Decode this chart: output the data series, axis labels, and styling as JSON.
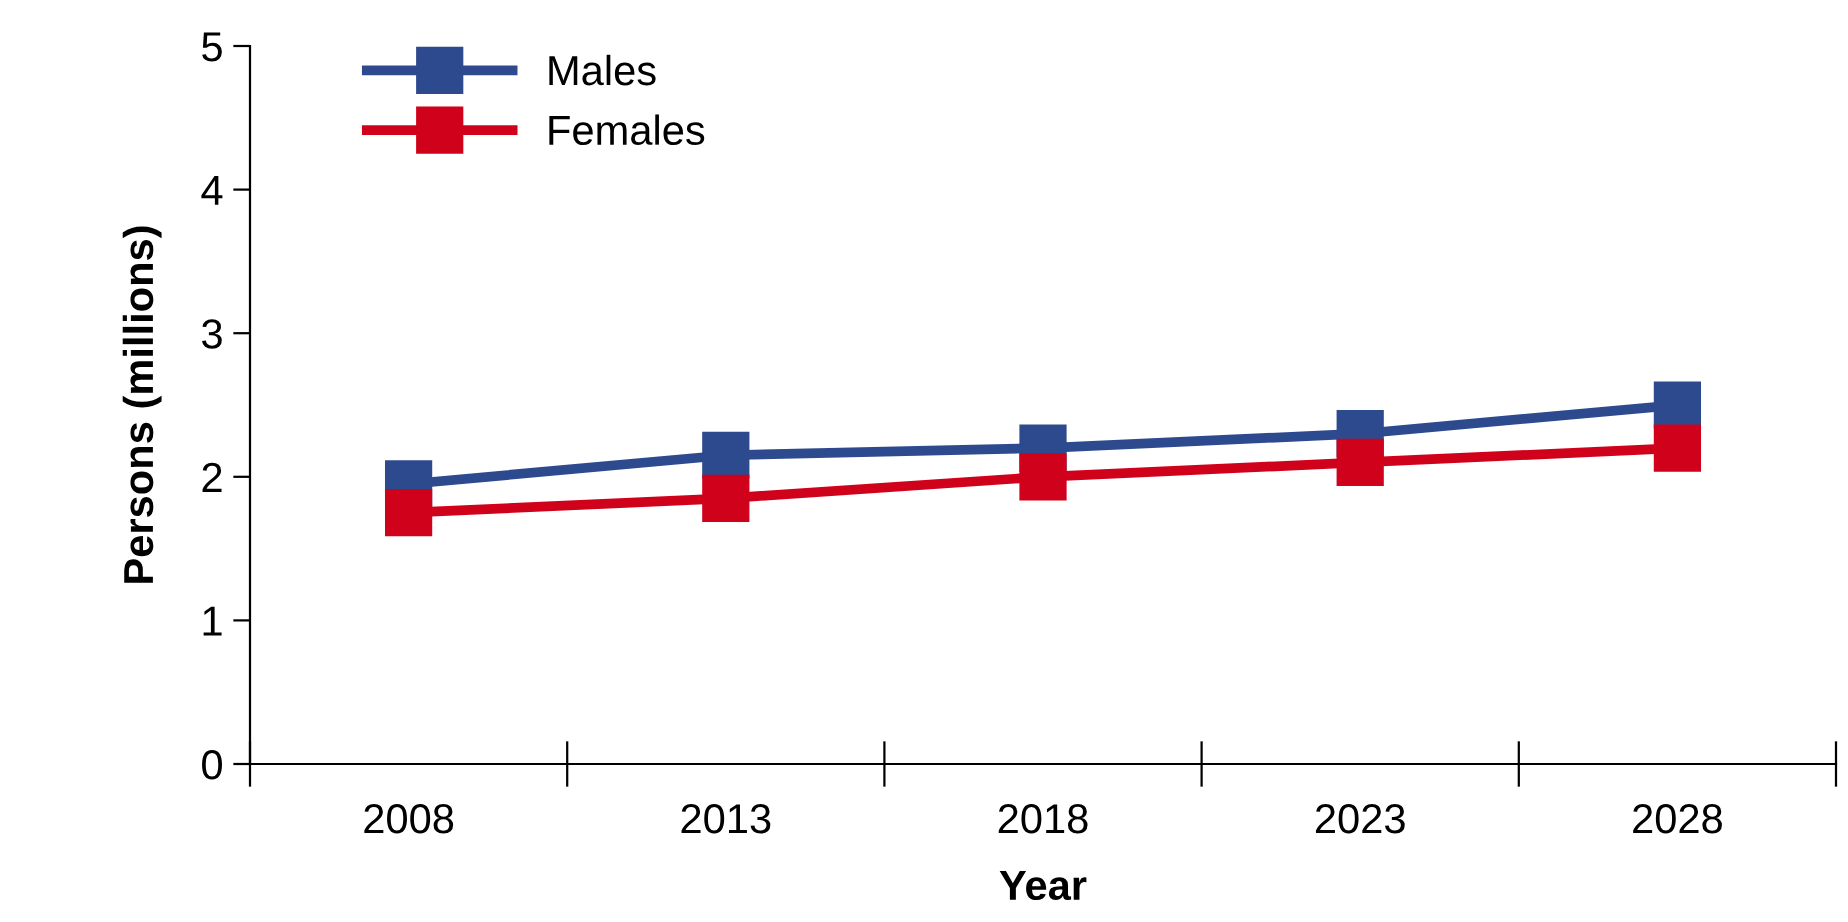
{
  "chart_data": {
    "type": "line",
    "xlabel": "Year",
    "ylabel": "Persons (millions)",
    "categories": [
      "2008",
      "2013",
      "2018",
      "2023",
      "2028"
    ],
    "series": [
      {
        "name": "Males",
        "color": "#2e4a8e",
        "values": [
          1.95,
          2.15,
          2.2,
          2.3,
          2.5
        ]
      },
      {
        "name": "Females",
        "color": "#d0021b",
        "values": [
          1.75,
          1.85,
          2.0,
          2.1,
          2.2
        ]
      }
    ],
    "ylim": [
      0,
      5
    ],
    "yticks": [
      0,
      1,
      2,
      3,
      4,
      5
    ],
    "grid": false,
    "legend": "top left",
    "marker": "square",
    "line_style": "solid"
  }
}
